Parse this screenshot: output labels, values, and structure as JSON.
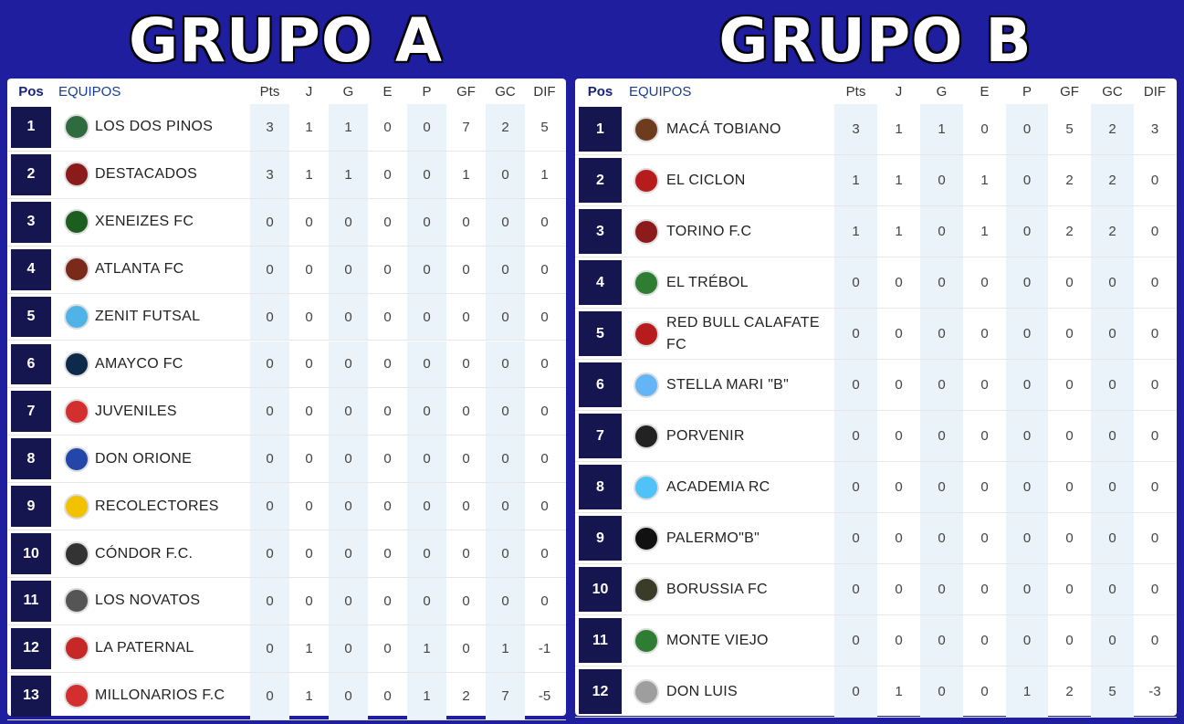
{
  "groups": [
    {
      "title": "GRUPO A",
      "headers": {
        "pos": "Pos",
        "team": "EQUIPOS",
        "pts": "Pts",
        "j": "J",
        "g": "G",
        "e": "E",
        "p": "P",
        "gf": "GF",
        "gc": "GC",
        "dif": "DIF"
      },
      "rows": [
        {
          "pos": "1",
          "team": "LOS DOS PINOS",
          "logo": "los-dos-pinos-logo",
          "color": "#2e6b3f",
          "stats": [
            "3",
            "1",
            "1",
            "0",
            "0",
            "7",
            "2",
            "5"
          ]
        },
        {
          "pos": "2",
          "team": "DESTACADOS",
          "logo": "destacados-logo",
          "color": "#8b1a1a",
          "stats": [
            "3",
            "1",
            "1",
            "0",
            "0",
            "1",
            "0",
            "1"
          ]
        },
        {
          "pos": "3",
          "team": "XENEIZES FC",
          "logo": "xeneizes-logo",
          "color": "#1b5e20",
          "stats": [
            "0",
            "0",
            "0",
            "0",
            "0",
            "0",
            "0",
            "0"
          ]
        },
        {
          "pos": "4",
          "team": "ATLANTA FC",
          "logo": "atlanta-logo",
          "color": "#7a2a1a",
          "stats": [
            "0",
            "0",
            "0",
            "0",
            "0",
            "0",
            "0",
            "0"
          ]
        },
        {
          "pos": "5",
          "team": "ZENIT FUTSAL",
          "logo": "zenit-logo",
          "color": "#4fb3e8",
          "stats": [
            "0",
            "0",
            "0",
            "0",
            "0",
            "0",
            "0",
            "0"
          ]
        },
        {
          "pos": "6",
          "team": "AMAYCO FC",
          "logo": "amayco-logo",
          "color": "#0d2a4a",
          "stats": [
            "0",
            "0",
            "0",
            "0",
            "0",
            "0",
            "0",
            "0"
          ]
        },
        {
          "pos": "7",
          "team": "JUVENILES",
          "logo": "juveniles-logo",
          "color": "#d32f2f",
          "stats": [
            "0",
            "0",
            "0",
            "0",
            "0",
            "0",
            "0",
            "0"
          ]
        },
        {
          "pos": "8",
          "team": "DON ORIONE",
          "logo": "don-orione-logo",
          "color": "#2346a8",
          "stats": [
            "0",
            "0",
            "0",
            "0",
            "0",
            "0",
            "0",
            "0"
          ]
        },
        {
          "pos": "9",
          "team": "RECOLECTORES",
          "logo": "recolectores-logo",
          "color": "#f2c200",
          "stats": [
            "0",
            "0",
            "0",
            "0",
            "0",
            "0",
            "0",
            "0"
          ]
        },
        {
          "pos": "10",
          "team": "CÓNDOR F.C.",
          "logo": "condor-logo",
          "color": "#333333",
          "stats": [
            "0",
            "0",
            "0",
            "0",
            "0",
            "0",
            "0",
            "0"
          ]
        },
        {
          "pos": "11",
          "team": "LOS NOVATOS",
          "logo": "los-novatos-logo",
          "color": "#555555",
          "stats": [
            "0",
            "0",
            "0",
            "0",
            "0",
            "0",
            "0",
            "0"
          ]
        },
        {
          "pos": "12",
          "team": "LA PATERNAL",
          "logo": "la-paternal-logo",
          "color": "#c62828",
          "stats": [
            "0",
            "1",
            "0",
            "0",
            "1",
            "0",
            "1",
            "-1"
          ]
        },
        {
          "pos": "13",
          "team": "MILLONARIOS F.C",
          "logo": "millonarios-logo",
          "color": "#d32f2f",
          "stats": [
            "0",
            "1",
            "0",
            "0",
            "1",
            "2",
            "7",
            "-5"
          ]
        }
      ]
    },
    {
      "title": "GRUPO B",
      "headers": {
        "pos": "Pos",
        "team": "EQUIPOS",
        "pts": "Pts",
        "j": "J",
        "g": "G",
        "e": "E",
        "p": "P",
        "gf": "GF",
        "gc": "GC",
        "dif": "DIF"
      },
      "rows": [
        {
          "pos": "1",
          "team": "MACÁ TOBIANO",
          "logo": "maca-tobiano-logo",
          "color": "#6d3b1e",
          "stats": [
            "3",
            "1",
            "1",
            "0",
            "0",
            "5",
            "2",
            "3"
          ]
        },
        {
          "pos": "2",
          "team": "EL CICLON",
          "logo": "el-ciclon-logo",
          "color": "#b71c1c",
          "stats": [
            "1",
            "1",
            "0",
            "1",
            "0",
            "2",
            "2",
            "0"
          ]
        },
        {
          "pos": "3",
          "team": "TORINO F.C",
          "logo": "torino-logo",
          "color": "#8e1b1b",
          "stats": [
            "1",
            "1",
            "0",
            "1",
            "0",
            "2",
            "2",
            "0"
          ]
        },
        {
          "pos": "4",
          "team": "EL TRÉBOL",
          "logo": "el-trebol-logo",
          "color": "#2e7d32",
          "stats": [
            "0",
            "0",
            "0",
            "0",
            "0",
            "0",
            "0",
            "0"
          ]
        },
        {
          "pos": "5",
          "team": "RED BULL CALAFATE FC",
          "logo": "red-bull-calafate-logo",
          "color": "#b71c1c",
          "stats": [
            "0",
            "0",
            "0",
            "0",
            "0",
            "0",
            "0",
            "0"
          ]
        },
        {
          "pos": "6",
          "team": "STELLA MARI \"B\"",
          "logo": "stella-mari-logo",
          "color": "#64b5f6",
          "stats": [
            "0",
            "0",
            "0",
            "0",
            "0",
            "0",
            "0",
            "0"
          ]
        },
        {
          "pos": "7",
          "team": "PORVENIR",
          "logo": "porvenir-logo",
          "color": "#222222",
          "stats": [
            "0",
            "0",
            "0",
            "0",
            "0",
            "0",
            "0",
            "0"
          ]
        },
        {
          "pos": "8",
          "team": "ACADEMIA RC",
          "logo": "academia-logo",
          "color": "#4fc3f7",
          "stats": [
            "0",
            "0",
            "0",
            "0",
            "0",
            "0",
            "0",
            "0"
          ]
        },
        {
          "pos": "9",
          "team": "PALERMO\"B\"",
          "logo": "palermo-logo",
          "color": "#111111",
          "stats": [
            "0",
            "0",
            "0",
            "0",
            "0",
            "0",
            "0",
            "0"
          ]
        },
        {
          "pos": "10",
          "team": "BORUSSIA FC",
          "logo": "borussia-logo",
          "color": "#3b3b2a",
          "stats": [
            "0",
            "0",
            "0",
            "0",
            "0",
            "0",
            "0",
            "0"
          ]
        },
        {
          "pos": "11",
          "team": "MONTE VIEJO",
          "logo": "monte-viejo-logo",
          "color": "#2e7d32",
          "stats": [
            "0",
            "0",
            "0",
            "0",
            "0",
            "0",
            "0",
            "0"
          ]
        },
        {
          "pos": "12",
          "team": "DON LUIS",
          "logo": "don-luis-logo",
          "color": "#9e9e9e",
          "stats": [
            "0",
            "1",
            "0",
            "0",
            "1",
            "2",
            "5",
            "-3"
          ]
        }
      ]
    }
  ]
}
